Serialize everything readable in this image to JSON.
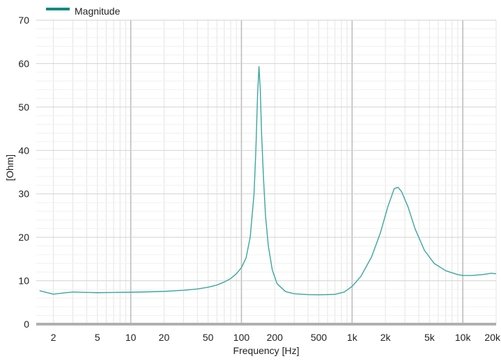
{
  "chart_data": {
    "type": "line",
    "title": "",
    "xlabel": "Frequency [Hz]",
    "ylabel": "[Ohm]",
    "x_scale": "log",
    "xlim": [
      1.4,
      20000
    ],
    "ylim": [
      0,
      70
    ],
    "grid": true,
    "legend_position": "top-left",
    "colors": {
      "series": "#3aa79c",
      "legend_swatch": "#0e8a80",
      "grid_major": "#bdbdbd",
      "grid_minor": "#e4e4e4",
      "axis": "#b0b0b0"
    },
    "x_ticks": [
      {
        "value": 2,
        "label": "2"
      },
      {
        "value": 5,
        "label": "5"
      },
      {
        "value": 10,
        "label": "10"
      },
      {
        "value": 20,
        "label": "20"
      },
      {
        "value": 50,
        "label": "50"
      },
      {
        "value": 100,
        "label": "100"
      },
      {
        "value": 200,
        "label": "200"
      },
      {
        "value": 500,
        "label": "500"
      },
      {
        "value": 1000,
        "label": "1k"
      },
      {
        "value": 2000,
        "label": "2k"
      },
      {
        "value": 5000,
        "label": "5k"
      },
      {
        "value": 10000,
        "label": "10k"
      },
      {
        "value": 20000,
        "label": "20k"
      }
    ],
    "y_ticks": [
      {
        "value": 0,
        "label": "0"
      },
      {
        "value": 10,
        "label": "10"
      },
      {
        "value": 20,
        "label": "20"
      },
      {
        "value": 30,
        "label": "30"
      },
      {
        "value": 40,
        "label": "40"
      },
      {
        "value": 50,
        "label": "50"
      },
      {
        "value": 60,
        "label": "60"
      },
      {
        "value": 70,
        "label": "70"
      }
    ],
    "series": [
      {
        "name": "Magnitude",
        "points": [
          [
            1.5,
            7.7
          ],
          [
            2,
            6.9
          ],
          [
            2.5,
            7.2
          ],
          [
            3,
            7.4
          ],
          [
            4,
            7.3
          ],
          [
            5,
            7.25
          ],
          [
            7,
            7.3
          ],
          [
            10,
            7.35
          ],
          [
            15,
            7.45
          ],
          [
            20,
            7.55
          ],
          [
            30,
            7.8
          ],
          [
            40,
            8.1
          ],
          [
            50,
            8.5
          ],
          [
            60,
            9.0
          ],
          [
            70,
            9.7
          ],
          [
            80,
            10.5
          ],
          [
            90,
            11.6
          ],
          [
            100,
            13.0
          ],
          [
            110,
            15.2
          ],
          [
            120,
            20.0
          ],
          [
            130,
            30.0
          ],
          [
            135,
            40.0
          ],
          [
            140,
            53.0
          ],
          [
            144,
            59.3
          ],
          [
            148,
            54.0
          ],
          [
            152,
            44.0
          ],
          [
            158,
            34.0
          ],
          [
            165,
            25.0
          ],
          [
            175,
            18.0
          ],
          [
            190,
            12.5
          ],
          [
            210,
            9.3
          ],
          [
            250,
            7.5
          ],
          [
            300,
            7.0
          ],
          [
            400,
            6.8
          ],
          [
            500,
            6.75
          ],
          [
            700,
            6.85
          ],
          [
            850,
            7.4
          ],
          [
            1000,
            8.7
          ],
          [
            1200,
            11.0
          ],
          [
            1500,
            15.5
          ],
          [
            1800,
            21.0
          ],
          [
            2100,
            27.0
          ],
          [
            2400,
            31.2
          ],
          [
            2600,
            31.5
          ],
          [
            2800,
            30.5
          ],
          [
            3200,
            27.0
          ],
          [
            3700,
            22.0
          ],
          [
            4500,
            17.0
          ],
          [
            5500,
            14.0
          ],
          [
            7000,
            12.3
          ],
          [
            9000,
            11.4
          ],
          [
            10000,
            11.2
          ],
          [
            12000,
            11.2
          ],
          [
            15000,
            11.4
          ],
          [
            18000,
            11.7
          ],
          [
            20000,
            11.6
          ]
        ]
      }
    ]
  }
}
